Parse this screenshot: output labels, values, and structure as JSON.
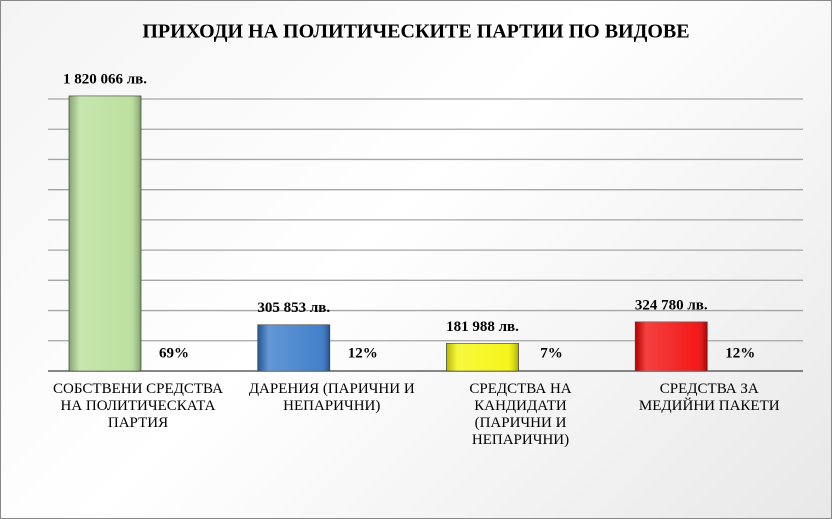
{
  "chart_data": {
    "type": "bar",
    "title": "ПРИХОДИ НА ПОЛИТИЧЕСКИТЕ ПАРТИИ ПО ВИДОВЕ",
    "categories": [
      "СОБСТВЕНИ СРЕДСТВА НА ПОЛИТИЧЕСКАТА ПАРТИЯ",
      "ДАРЕНИЯ (ПАРИЧНИ И НЕПАРИЧНИ)",
      "СРЕДСТВА НА КАНДИДАТИ (ПАРИЧНИ И НЕПАРИЧНИ)",
      "СРЕДСТВА ЗА МЕДИЙНИ ПАКЕТИ"
    ],
    "values": [
      1820066,
      305853,
      181988,
      324780
    ],
    "value_labels": [
      "1 820 066 лв.",
      "305 853 лв.",
      "181 988 лв.",
      "324 780 лв."
    ],
    "share_labels": [
      "69%",
      "12%",
      "7%",
      "12%"
    ],
    "colors": [
      "#b5dd94",
      "#2f74c6",
      "#f5f500",
      "#f20000"
    ],
    "ylim": [
      0,
      1800000
    ],
    "yticks": [
      0,
      200000,
      400000,
      600000,
      800000,
      1000000,
      1200000,
      1400000,
      1600000,
      1800000
    ],
    "grid": true
  }
}
